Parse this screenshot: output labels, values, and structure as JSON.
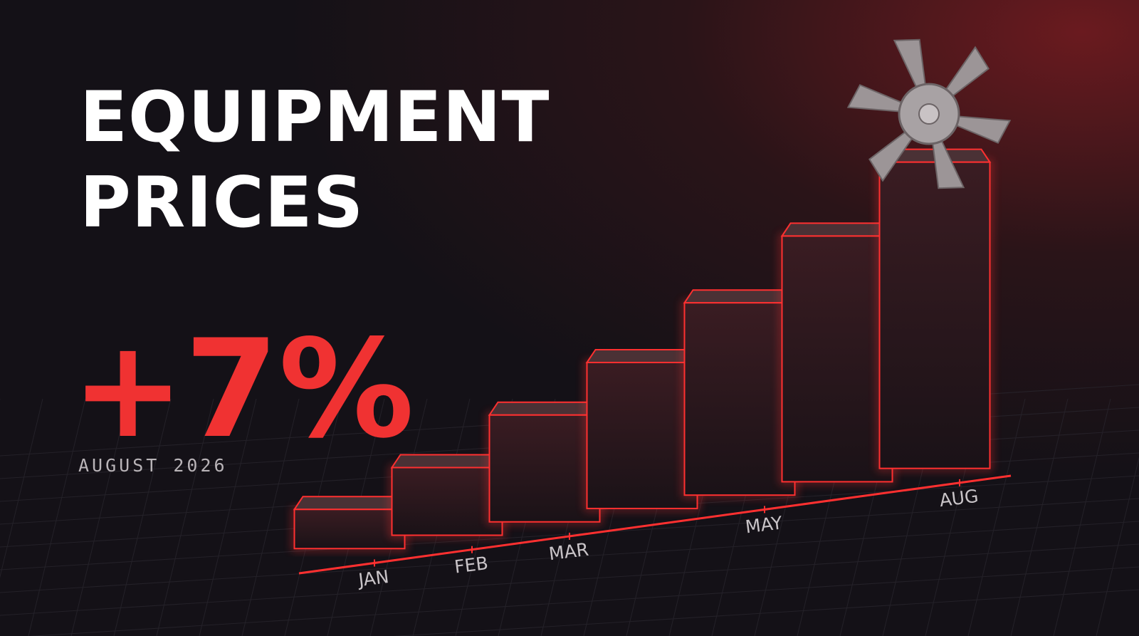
{
  "chart_data": {
    "type": "bar",
    "title_lines": [
      "EQUIPMENT",
      "PRICES"
    ],
    "headline": "+7%",
    "subtitle": "AUGUST 2026",
    "categories": [
      "JAN",
      "FEB",
      "MAR",
      null,
      "MAY",
      null,
      "AUG"
    ],
    "values": [
      55,
      95,
      150,
      205,
      270,
      345,
      430
    ],
    "color": "#ff3030"
  }
}
